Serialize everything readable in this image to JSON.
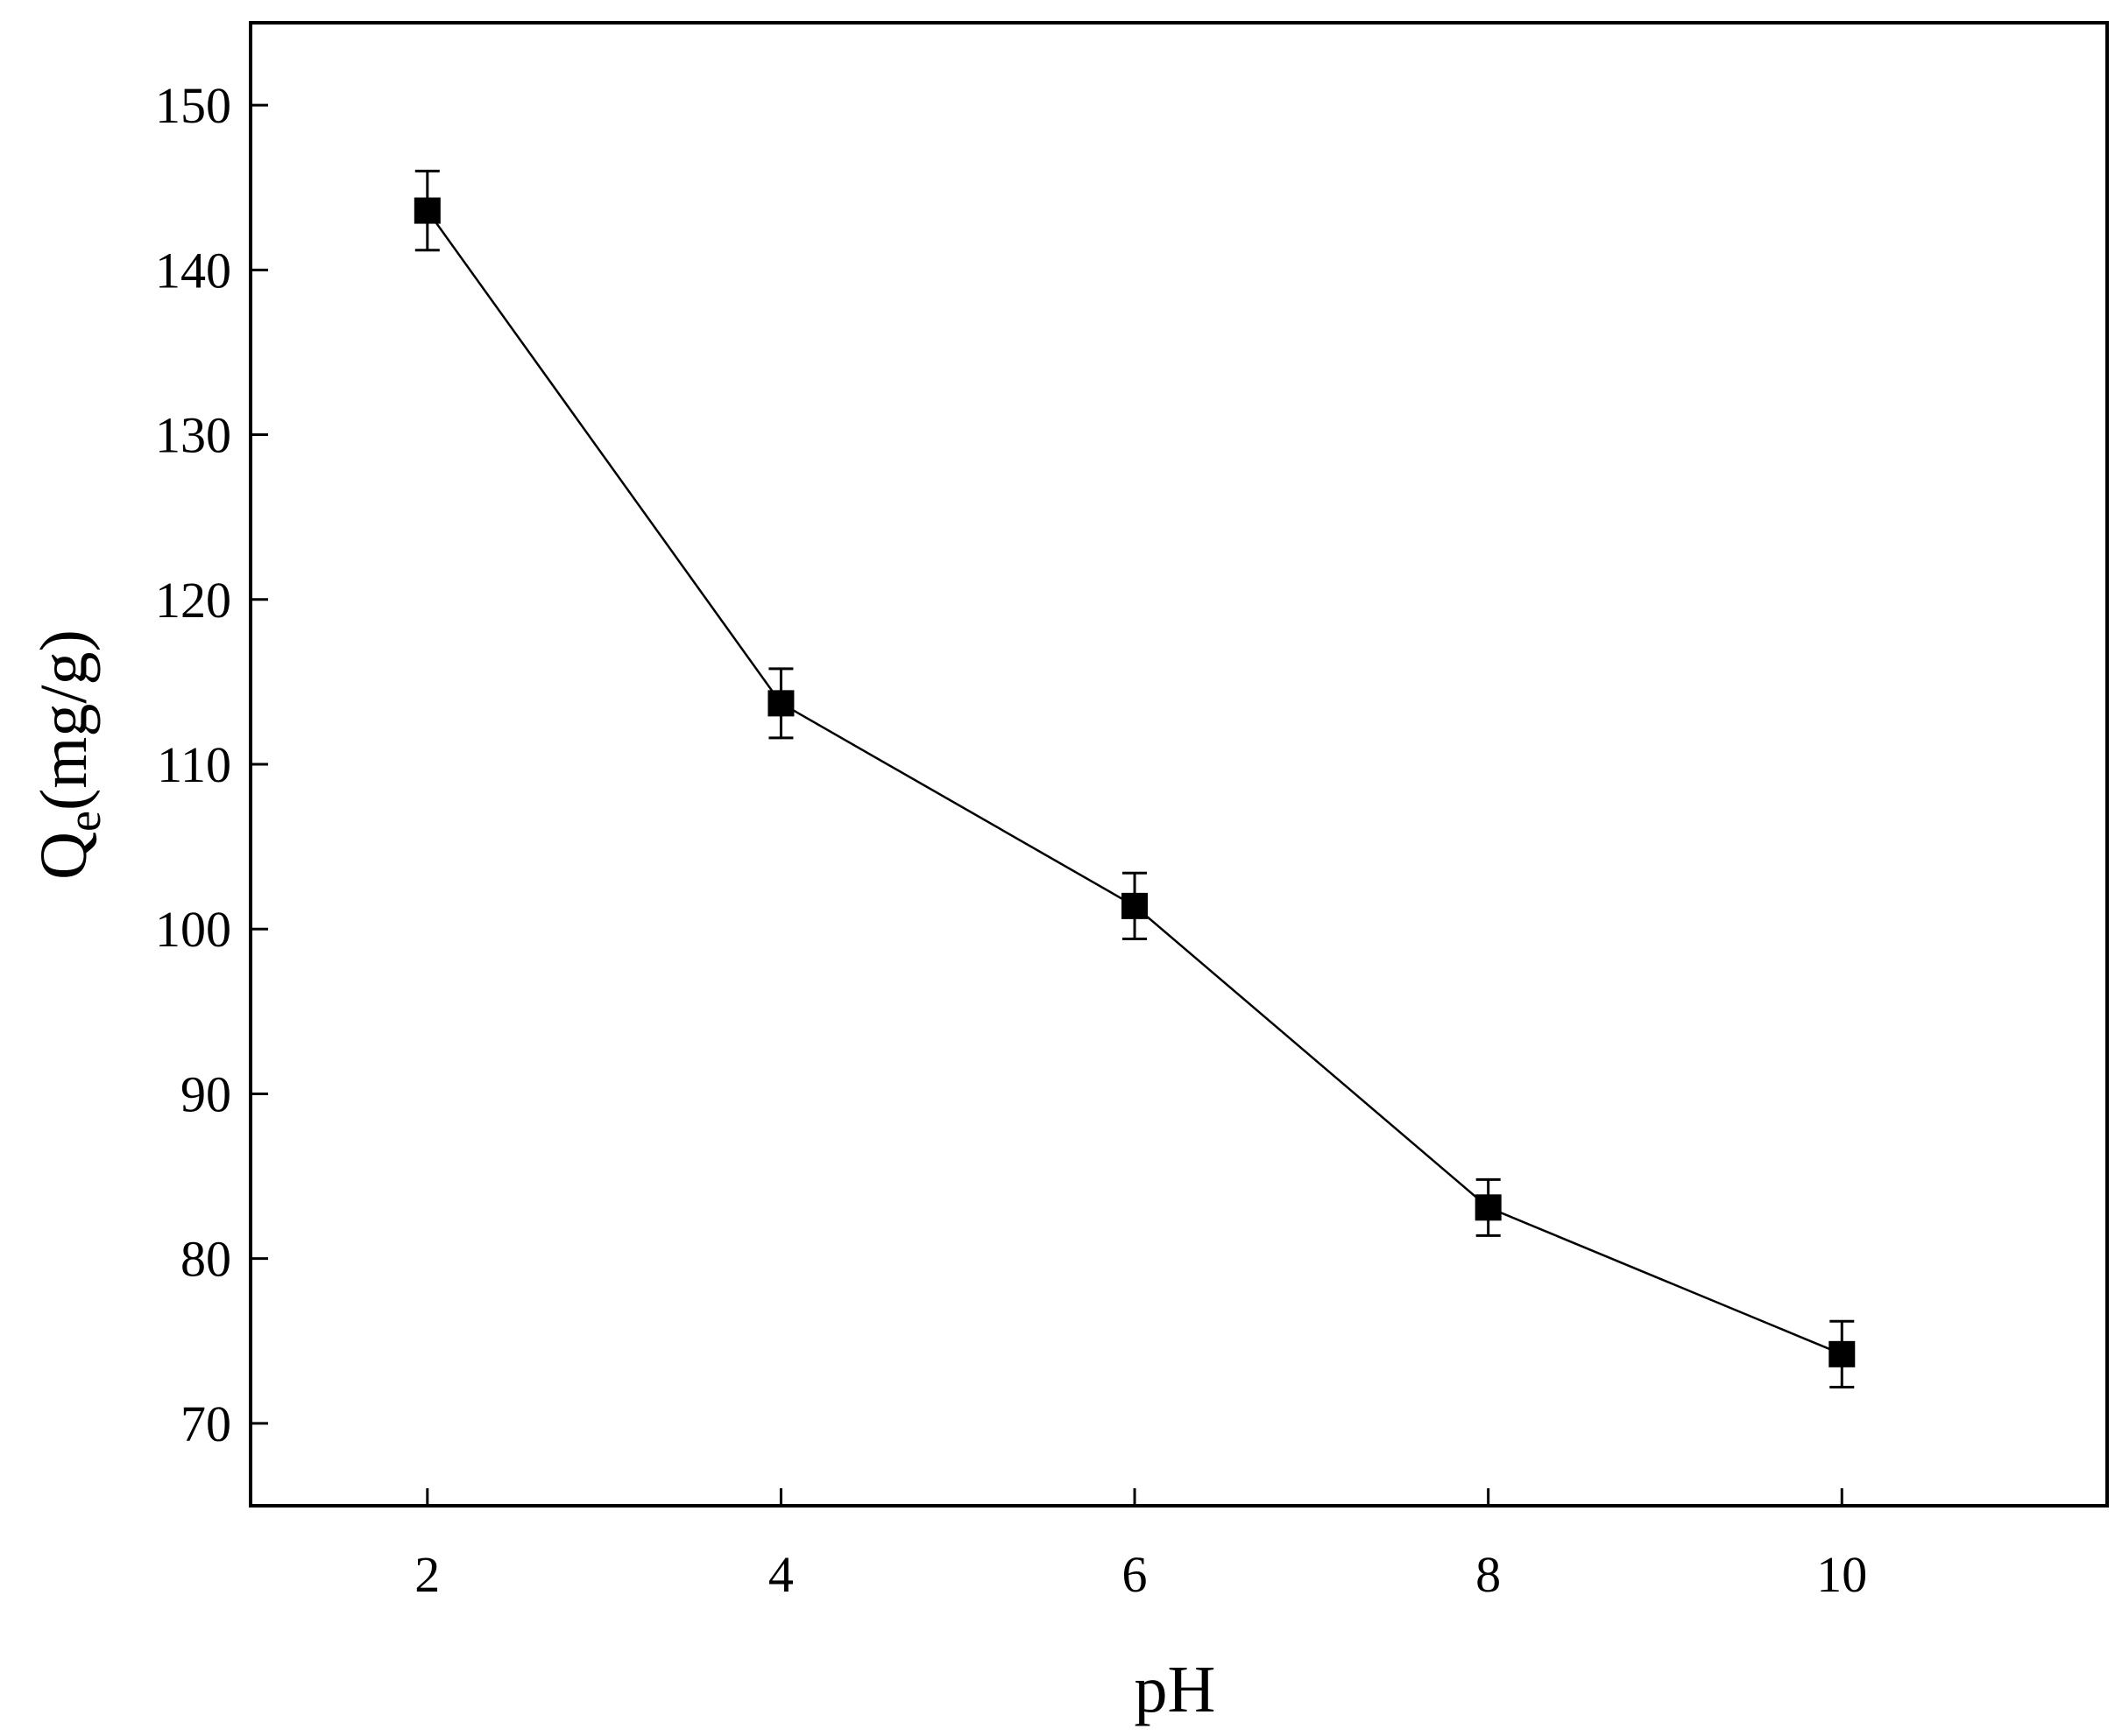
{
  "chart_data": {
    "type": "line",
    "title": "",
    "xlabel": "pH",
    "ylabel": {
      "main": "Q",
      "subscript": "e",
      "unit": "(mg/g)"
    },
    "xlim": [
      1,
      11.5
    ],
    "ylim": [
      65,
      155
    ],
    "xticks": [
      2,
      4,
      6,
      8,
      10
    ],
    "yticks": [
      70,
      80,
      90,
      100,
      110,
      120,
      130,
      140,
      150
    ],
    "grid": false,
    "legend": "none",
    "marker": "filled-square",
    "color": "#000000",
    "series": [
      {
        "x": [
          2,
          4,
          6,
          8,
          10
        ],
        "y": [
          143.6,
          113.7,
          101.4,
          83.1,
          74.2
        ],
        "error": [
          2.4,
          2.1,
          2.0,
          1.7,
          2.0
        ]
      }
    ]
  }
}
